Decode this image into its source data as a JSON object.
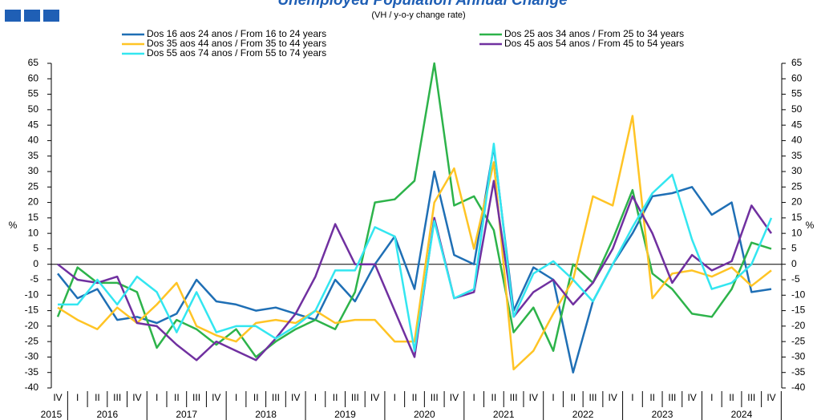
{
  "chart_data": {
    "type": "line",
    "title": "Unemployed Population Annual Change",
    "subtitle": "(VH / y-o-y change rate)",
    "ylabel": "%",
    "categories": [
      "IV",
      "I",
      "II",
      "III",
      "IV",
      "I",
      "II",
      "III",
      "IV",
      "I",
      "II",
      "III",
      "IV",
      "I",
      "II",
      "III",
      "IV",
      "I",
      "II",
      "III",
      "IV",
      "I",
      "II",
      "III",
      "IV",
      "I",
      "II",
      "III",
      "IV",
      "I",
      "II",
      "III",
      "IV",
      "I",
      "II",
      "III",
      "IV"
    ],
    "years": [
      "2015",
      "2016",
      "2017",
      "2018",
      "2019",
      "2020",
      "2021",
      "2022",
      "2023",
      "2024"
    ],
    "ylim": [
      -40,
      65
    ],
    "yticks": [
      65,
      60,
      55,
      50,
      45,
      40,
      35,
      30,
      25,
      20,
      15,
      10,
      5,
      0,
      -5,
      -10,
      -15,
      -20,
      -25,
      -30,
      -35,
      -40
    ],
    "series": [
      {
        "name": "Dos 16 aos 24 anos / From 16 to 24 years",
        "color": "#1f6fb5",
        "values": [
          -3,
          -11,
          -8,
          -18,
          -17,
          -19,
          -16,
          -5,
          -12,
          -13,
          -15,
          -14,
          -16,
          -18,
          -5,
          -12,
          0,
          9,
          -8,
          30,
          3,
          0,
          38,
          -15,
          -1,
          -5,
          -35,
          -12,
          0,
          10,
          22,
          23,
          25,
          16,
          20,
          -9,
          -8
        ]
      },
      {
        "name": "Dos 25 aos 34 anos / From 25 to 34 years",
        "color": "#2db34a",
        "values": [
          -17,
          -1,
          -6,
          -6,
          -9,
          -27,
          -18,
          -21,
          -26,
          -21,
          -30,
          -25,
          -21,
          -18,
          -21,
          -9,
          20,
          21,
          27,
          65,
          19,
          22,
          11,
          -22,
          -14,
          -28,
          0,
          -6,
          8,
          24,
          -3,
          -8,
          -16,
          -17,
          -8,
          7,
          5
        ]
      },
      {
        "name": "Dos 35 aos 44 anos / From 35 to 44 years",
        "color": "#ffc425",
        "values": [
          -14,
          -18,
          -21,
          -14,
          -19,
          -13,
          -6,
          -20,
          -23,
          -25,
          -19,
          -18,
          -19,
          -15,
          -19,
          -18,
          -18,
          -25,
          -25,
          20,
          31,
          5,
          33,
          -34,
          -28,
          -16,
          -5,
          22,
          19,
          48,
          -11,
          -3,
          -2,
          -4,
          -1,
          -7,
          -2
        ]
      },
      {
        "name": "Dos 45 aos 54 anos / From 45 to 54 years",
        "color": "#7030a0",
        "values": [
          0,
          -5,
          -6,
          -4,
          -19,
          -20,
          -26,
          -31,
          -25,
          -28,
          -31,
          -24,
          -16,
          -4,
          13,
          0,
          0,
          -15,
          -30,
          15,
          -11,
          -9,
          27,
          -17,
          -9,
          -5,
          -13,
          -6,
          5,
          22,
          10,
          -6,
          3,
          -2,
          1,
          19,
          10
        ]
      },
      {
        "name": "Dos 55 aos 74 anos / From 55 to 74 years",
        "color": "#33e6f0",
        "values": [
          -13,
          -13,
          -5,
          -13,
          -4,
          -9,
          -22,
          -9,
          -22,
          -20,
          -20,
          -24,
          -20,
          -15,
          -2,
          -2,
          12,
          9,
          -28,
          14,
          -11,
          -8,
          39,
          -17,
          -3,
          1,
          -5,
          -12,
          0,
          12,
          23,
          29,
          8,
          -8,
          -6,
          0,
          15
        ]
      }
    ]
  }
}
